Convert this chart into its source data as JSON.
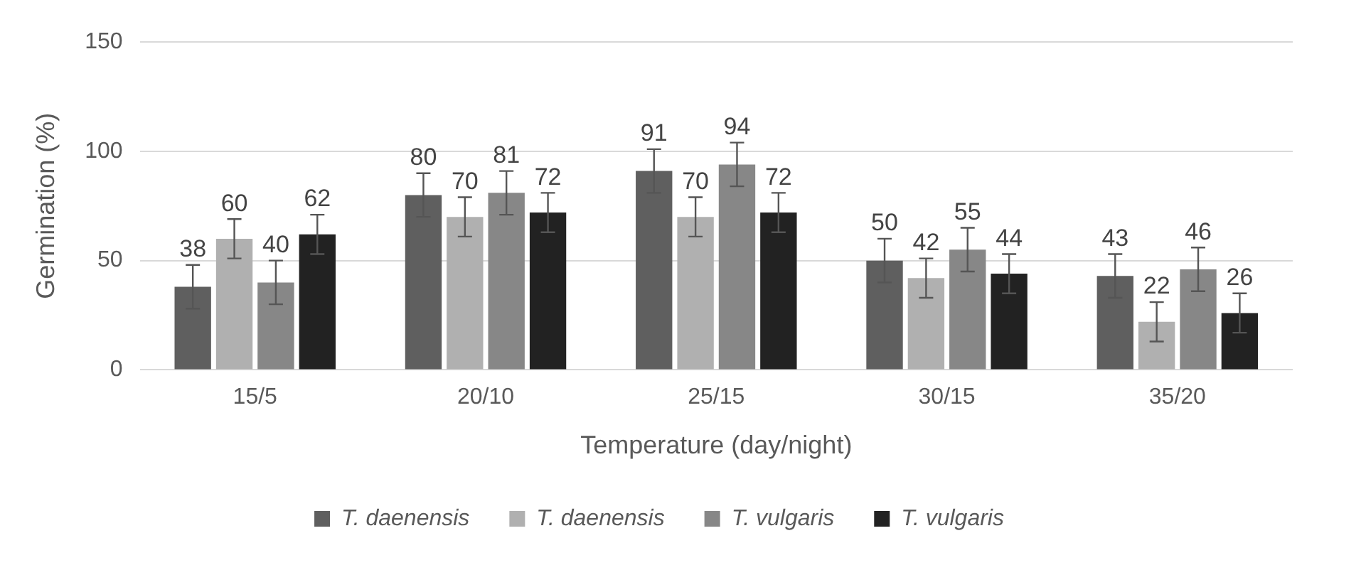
{
  "chart_data": {
    "type": "bar",
    "xlabel": "Temperature (day/night)",
    "ylabel": "Germination (%)",
    "categories": [
      "15/5",
      "20/10",
      "25/15",
      "30/15",
      "35/20"
    ],
    "series": [
      {
        "name": "T. daenensis",
        "color": "#5f5f5f",
        "values": [
          38,
          80,
          91,
          50,
          43
        ],
        "errors": [
          10,
          10,
          10,
          10,
          10
        ]
      },
      {
        "name": "T. daenensis",
        "color": "#b0b0b0",
        "values": [
          60,
          70,
          70,
          42,
          22
        ],
        "errors": [
          9,
          9,
          9,
          9,
          9
        ]
      },
      {
        "name": "T. vulgaris",
        "color": "#878787",
        "values": [
          40,
          81,
          94,
          55,
          46
        ],
        "errors": [
          10,
          10,
          10,
          10,
          10
        ]
      },
      {
        "name": "T. vulgaris",
        "color": "#222222",
        "values": [
          62,
          72,
          72,
          44,
          26
        ],
        "errors": [
          9,
          9,
          9,
          9,
          9
        ]
      }
    ],
    "ylim": [
      0,
      150
    ],
    "yticks": [
      0,
      50,
      100,
      150
    ],
    "grid": "y",
    "legend": "bottom",
    "data_labels": true
  }
}
